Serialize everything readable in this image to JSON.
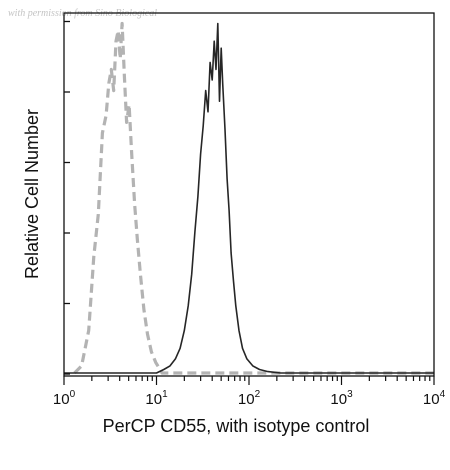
{
  "watermark": "with permission from Sino Biological",
  "chart_data": {
    "type": "line",
    "title": "",
    "xlabel": "PerCP CD55, with isotype control",
    "ylabel": "Relative Cell Number",
    "xscale": "log",
    "xlim": [
      1,
      10000
    ],
    "ylim": [
      0,
      1
    ],
    "grid": false,
    "x_tick_labels": [
      {
        "base": "10",
        "exp": "0"
      },
      {
        "base": "10",
        "exp": "1"
      },
      {
        "base": "10",
        "exp": "2"
      },
      {
        "base": "10",
        "exp": "3"
      },
      {
        "base": "10",
        "exp": "4"
      }
    ],
    "series": [
      {
        "style": "dashed",
        "color": "#b3b3b3",
        "x": [
          1.3,
          1.55,
          1.85,
          2.1,
          2.35,
          2.6,
          2.85,
          3.05,
          3.25,
          3.45,
          3.65,
          3.85,
          4.05,
          4.25,
          4.5,
          4.75,
          5.05,
          5.4,
          5.8,
          6.2,
          6.7,
          7.3,
          8.0,
          8.8,
          9.8,
          11.5,
          15,
          25,
          60,
          200,
          10000
        ],
        "y": [
          0.0,
          0.02,
          0.12,
          0.33,
          0.45,
          0.68,
          0.73,
          0.82,
          0.86,
          0.8,
          0.94,
          0.97,
          0.89,
          0.99,
          0.84,
          0.71,
          0.76,
          0.62,
          0.48,
          0.38,
          0.28,
          0.18,
          0.11,
          0.06,
          0.03,
          0.0,
          0.0,
          0.0,
          0.0,
          0.0,
          0.0
        ]
      },
      {
        "style": "solid",
        "color": "#262626",
        "x": [
          1,
          10,
          12,
          14,
          16,
          18,
          20,
          22,
          24,
          26,
          28,
          30,
          32,
          34,
          36,
          38,
          40,
          42,
          44,
          46,
          48,
          50,
          52,
          55,
          58,
          61,
          64,
          68,
          72,
          78,
          85,
          95,
          110,
          130,
          160,
          220,
          400,
          10000
        ],
        "y": [
          0.0,
          0.0,
          0.01,
          0.02,
          0.04,
          0.07,
          0.12,
          0.19,
          0.28,
          0.4,
          0.5,
          0.62,
          0.7,
          0.8,
          0.74,
          0.88,
          0.83,
          0.94,
          0.86,
          0.99,
          0.77,
          0.92,
          0.82,
          0.69,
          0.55,
          0.46,
          0.34,
          0.26,
          0.19,
          0.12,
          0.07,
          0.04,
          0.02,
          0.01,
          0.004,
          0.0,
          0.0,
          0.0
        ]
      }
    ]
  }
}
